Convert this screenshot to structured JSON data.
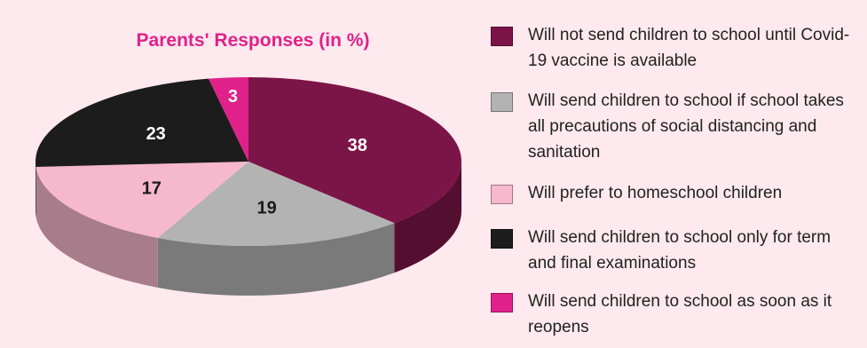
{
  "chart_data": {
    "type": "pie",
    "title": "Parents' Responses (in %)",
    "slices": [
      {
        "label": "Will not send children to school until Covid-19 vaccine is available",
        "value": 38,
        "color": "#7c1547"
      },
      {
        "label": "Will send children to school if school takes all precautions of social distancing and sanitation",
        "value": 19,
        "color": "#b3b3b3"
      },
      {
        "label": "Will prefer to homeschool children",
        "value": 17,
        "color": "#f6b8cc"
      },
      {
        "label": "Will send children to school only for term and final examinations",
        "value": 23,
        "color": "#1c1c1c"
      },
      {
        "label": "Will send children to school as soon as it reopens",
        "value": 3,
        "color": "#e0218a"
      }
    ],
    "data_labels": [
      "38",
      "19",
      "17",
      "23",
      "3"
    ],
    "legend_position": "right",
    "style": "3d-tilted"
  }
}
